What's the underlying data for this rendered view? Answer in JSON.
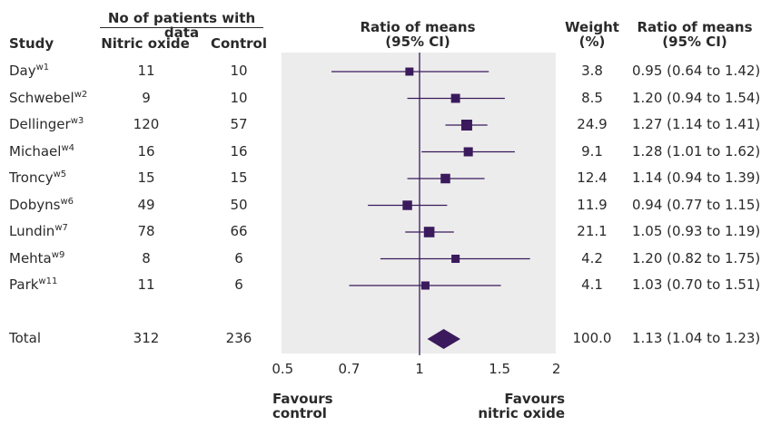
{
  "headers": {
    "group_header": "No of patients with data",
    "study": "Study",
    "nitric_oxide": "Nitric oxide",
    "control": "Control",
    "ratio_means_center_line1": "Ratio of means",
    "ratio_means_center_line2": "(95% CI)",
    "weight_line1": "Weight",
    "weight_line2": "(%)",
    "ratio_means_right_line1": "Ratio of means",
    "ratio_means_right_line2": "(95% CI)"
  },
  "favours": {
    "left_line1": "Favours",
    "left_line2": "control",
    "right_line1": "Favours",
    "right_line2": "nitric oxide"
  },
  "chart_data": {
    "type": "forest",
    "x_scale": "log",
    "xlim": [
      0.5,
      2
    ],
    "x_ticks": [
      "0.5",
      "0.7",
      "1",
      "1.5",
      "2"
    ],
    "reference_line": 1,
    "studies": [
      {
        "name": "Day",
        "ref": "w1",
        "nitric_oxide": "11",
        "control": "10",
        "weight": "3.8",
        "ci_text": "0.95 (0.64 to 1.42)",
        "est": 0.95,
        "low": 0.64,
        "high": 1.42
      },
      {
        "name": "Schwebel",
        "ref": "w2",
        "nitric_oxide": "9",
        "control": "10",
        "weight": "8.5",
        "ci_text": "1.20 (0.94 to 1.54)",
        "est": 1.2,
        "low": 0.94,
        "high": 1.54
      },
      {
        "name": "Dellinger",
        "ref": "w3",
        "nitric_oxide": "120",
        "control": "57",
        "weight": "24.9",
        "ci_text": "1.27 (1.14 to 1.41)",
        "est": 1.27,
        "low": 1.14,
        "high": 1.41
      },
      {
        "name": "Michael",
        "ref": "w4",
        "nitric_oxide": "16",
        "control": "16",
        "weight": "9.1",
        "ci_text": "1.28 (1.01 to 1.62)",
        "est": 1.28,
        "low": 1.01,
        "high": 1.62
      },
      {
        "name": "Troncy",
        "ref": "w5",
        "nitric_oxide": "15",
        "control": "15",
        "weight": "12.4",
        "ci_text": "1.14 (0.94 to 1.39)",
        "est": 1.14,
        "low": 0.94,
        "high": 1.39
      },
      {
        "name": "Dobyns",
        "ref": "w6",
        "nitric_oxide": "49",
        "control": "50",
        "weight": "11.9",
        "ci_text": "0.94 (0.77 to 1.15)",
        "est": 0.94,
        "low": 0.77,
        "high": 1.15
      },
      {
        "name": "Lundin",
        "ref": "w7",
        "nitric_oxide": "78",
        "control": "66",
        "weight": "21.1",
        "ci_text": "1.05 (0.93 to 1.19)",
        "est": 1.05,
        "low": 0.93,
        "high": 1.19
      },
      {
        "name": "Mehta",
        "ref": "w9",
        "nitric_oxide": "8",
        "control": "6",
        "weight": "4.2",
        "ci_text": "1.20 (0.82 to 1.75)",
        "est": 1.2,
        "low": 0.82,
        "high": 1.75
      },
      {
        "name": "Park",
        "ref": "w11",
        "nitric_oxide": "11",
        "control": "6",
        "weight": "4.1",
        "ci_text": "1.03 (0.70 to 1.51)",
        "est": 1.03,
        "low": 0.7,
        "high": 1.51
      }
    ],
    "total": {
      "name": "Total",
      "nitric_oxide": "312",
      "control": "236",
      "weight": "100.0",
      "ci_text": "1.13 (1.04 to 1.23)",
      "est": 1.13,
      "low": 1.04,
      "high": 1.23
    },
    "colors": {
      "marker": "#3a1a5c",
      "panel": "#ececec",
      "axis": "#3a1a5c"
    }
  }
}
